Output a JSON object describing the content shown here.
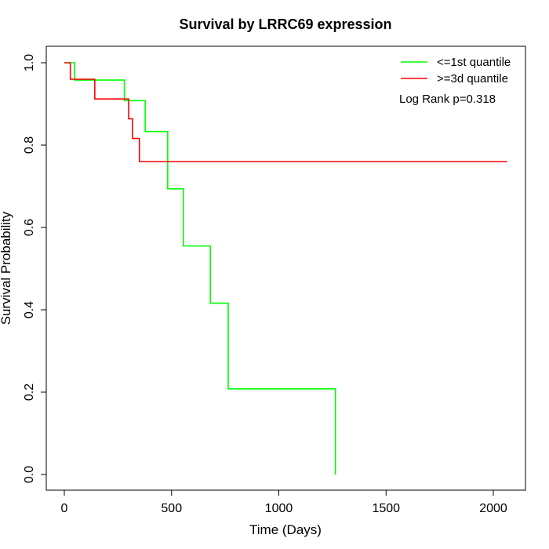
{
  "chart_data": {
    "type": "line",
    "title": "Survival by LRRC69 expression",
    "xlabel": "Time (Days)",
    "ylabel": "Survival Probability",
    "xlim": [
      0,
      2070
    ],
    "ylim": [
      0,
      1
    ],
    "x_ticks": [
      0,
      500,
      1000,
      1500,
      2000
    ],
    "x_tick_labels": [
      "0",
      "500",
      "1000",
      "1500",
      "2000"
    ],
    "y_ticks": [
      0,
      0.2,
      0.4,
      0.6,
      0.8,
      1.0
    ],
    "y_tick_labels": [
      "0.0",
      "0.2",
      "0.4",
      "0.6",
      "0.8",
      "1.0"
    ],
    "grid": false,
    "legend_position": "top-right",
    "annotation": "Log Rank p=0.318",
    "series": [
      {
        "name": "<=1st quantile",
        "color": "#00ff00",
        "step": true,
        "x": [
          0,
          48,
          280,
          377,
          482,
          555,
          681,
          764,
          1264,
          1264
        ],
        "y": [
          1.0,
          0.958,
          0.908,
          0.833,
          0.694,
          0.555,
          0.416,
          0.208,
          0.208,
          0.0
        ]
      },
      {
        "name": ">=3d quantile",
        "color": "#ff0000",
        "step": true,
        "x": [
          0,
          28,
          142,
          300,
          318,
          350,
          2065
        ],
        "y": [
          1.0,
          0.96,
          0.912,
          0.864,
          0.816,
          0.76,
          0.76
        ]
      }
    ]
  }
}
